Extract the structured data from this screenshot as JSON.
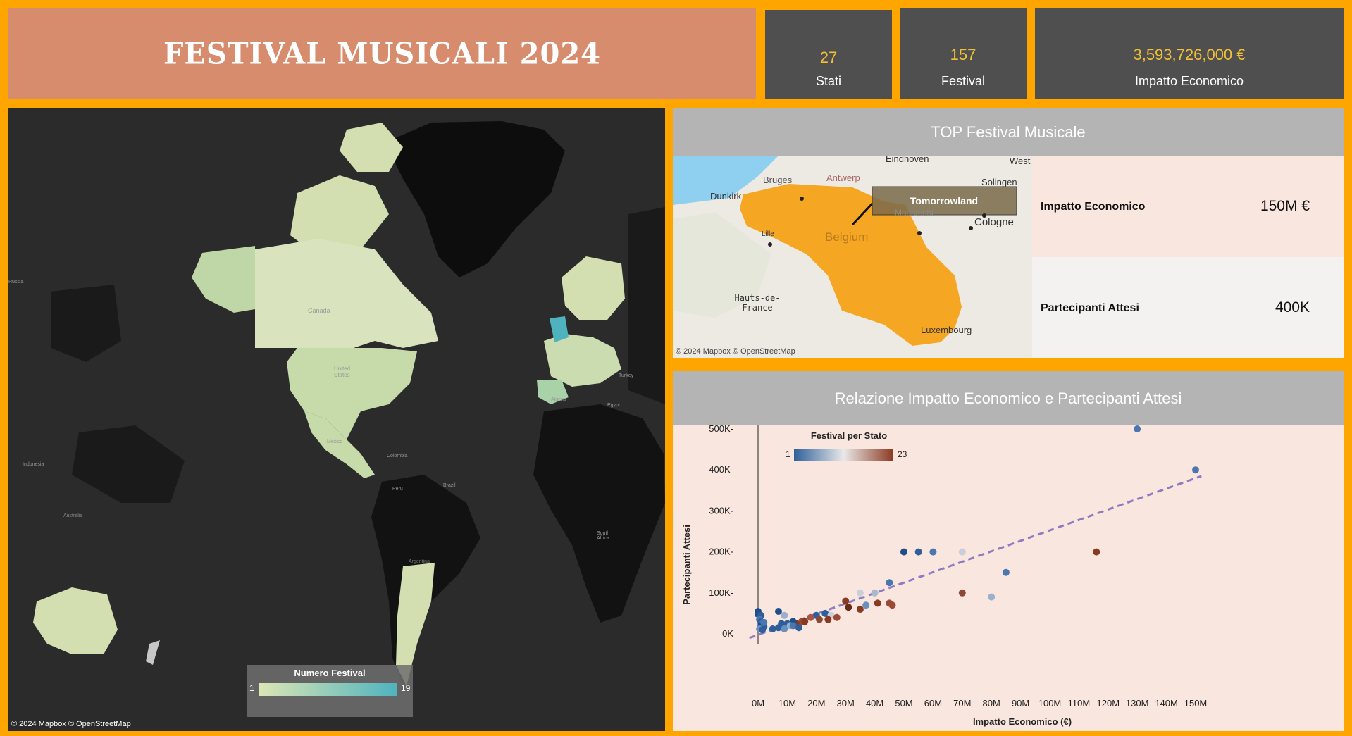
{
  "header": {
    "title": "FESTIVAL MUSICALI 2024"
  },
  "kpis": {
    "stati": {
      "value": "27",
      "label": "Stati"
    },
    "festival": {
      "value": "157",
      "label": "Festival"
    },
    "impatto": {
      "value": "3,593,726,000 €",
      "label": "Impatto Economico"
    }
  },
  "map": {
    "credit": "© 2024 Mapbox  © OpenStreetMap",
    "legend": {
      "title": "Numero Festival",
      "min": "1",
      "max": "19",
      "color_low": "#DCE6B4",
      "color_high": "#4FB3BF"
    },
    "labels": [
      "Canada",
      "United States",
      "Mexico",
      "Colombia",
      "Peru",
      "Brazil",
      "Argentina",
      "Algeria",
      "Egypt",
      "Turkey",
      "South Africa",
      "Australia",
      "Indonesia",
      "Russia"
    ]
  },
  "top_festival": {
    "title": "TOP Festival Musicale",
    "festival_name": "Tomorrowland",
    "map_credit": "© 2024 Mapbox  © OpenStreetMap",
    "place_labels": [
      "Eindhoven",
      "Antwerp",
      "Bruges",
      "Dunkirk",
      "Belgium",
      "Solingen",
      "West",
      "Cologne",
      "Maastricht",
      "Hauts-de-France",
      "Luxembourg",
      "Lille"
    ],
    "impatto_label": "Impatto Economico",
    "impatto_value": "150M €",
    "partecipanti_label": "Partecipanti Attesi",
    "partecipanti_value": "400K",
    "accent_color": "#F5A623"
  },
  "scatter": {
    "title": "Relazione Impatto Economico e Partecipanti Attesi",
    "legend": {
      "title": "Festival per Stato",
      "min": "1",
      "max": "23",
      "color_low": "#2F5F9A",
      "color_mid": "#E9E9E9",
      "color_high": "#8B3A22"
    }
  },
  "chart_data": {
    "type": "scatter",
    "title": "Relazione Impatto Economico e Partecipanti Attesi",
    "xlabel": "Impatto Economico (€)",
    "ylabel": "Partecipanti Attesi",
    "xlim": [
      0,
      150
    ],
    "ylim": [
      0,
      500
    ],
    "x_unit": "M",
    "y_unit": "K",
    "x_ticks": [
      "0M",
      "10M",
      "20M",
      "30M",
      "40M",
      "50M",
      "60M",
      "70M",
      "80M",
      "90M",
      "100M",
      "110M",
      "120M",
      "130M",
      "140M",
      "150M"
    ],
    "y_ticks": [
      "0K",
      "100K-",
      "200K-",
      "300K-",
      "400K-",
      "500K-"
    ],
    "trendline": {
      "x": [
        -3,
        152
      ],
      "y": [
        -10,
        385
      ],
      "style": "dashed",
      "color": "#8E7CC3"
    },
    "points": [
      {
        "x": 130,
        "y": 500,
        "c": "#4A77B0"
      },
      {
        "x": 150,
        "y": 400,
        "c": "#4A77B0"
      },
      {
        "x": 50,
        "y": 200,
        "c": "#1F4E8C"
      },
      {
        "x": 55,
        "y": 200,
        "c": "#2F5F9A"
      },
      {
        "x": 60,
        "y": 200,
        "c": "#4A77B0"
      },
      {
        "x": 70,
        "y": 200,
        "c": "#C9CFD8"
      },
      {
        "x": 116,
        "y": 200,
        "c": "#8B3A22"
      },
      {
        "x": 85,
        "y": 150,
        "c": "#4A77B0"
      },
      {
        "x": 45,
        "y": 125,
        "c": "#4A77B0"
      },
      {
        "x": 70,
        "y": 100,
        "c": "#8B4A33"
      },
      {
        "x": 80,
        "y": 90,
        "c": "#9AB0CC"
      },
      {
        "x": 35,
        "y": 100,
        "c": "#C9CFD8"
      },
      {
        "x": 40,
        "y": 100,
        "c": "#A9B8CC"
      },
      {
        "x": 30,
        "y": 80,
        "c": "#8B3A22"
      },
      {
        "x": 41,
        "y": 75,
        "c": "#8B3A22"
      },
      {
        "x": 45,
        "y": 75,
        "c": "#9A4A36"
      },
      {
        "x": 46,
        "y": 70,
        "c": "#9A4A36"
      },
      {
        "x": 37,
        "y": 70,
        "c": "#6A8FBF"
      },
      {
        "x": 31,
        "y": 65,
        "c": "#6A2A1A"
      },
      {
        "x": 35,
        "y": 60,
        "c": "#8B3A22"
      },
      {
        "x": 23,
        "y": 50,
        "c": "#2F5F9A"
      },
      {
        "x": 25,
        "y": 45,
        "c": "#C9CFD8"
      },
      {
        "x": 27,
        "y": 40,
        "c": "#9A4A36"
      },
      {
        "x": 20,
        "y": 45,
        "c": "#2F5F9A"
      },
      {
        "x": 18,
        "y": 40,
        "c": "#A9564A"
      },
      {
        "x": 21,
        "y": 35,
        "c": "#8B4A33"
      },
      {
        "x": 24,
        "y": 35,
        "c": "#8B3A22"
      },
      {
        "x": 15,
        "y": 30,
        "c": "#9A4A36"
      },
      {
        "x": 16,
        "y": 30,
        "c": "#8B3A22"
      },
      {
        "x": 13,
        "y": 25,
        "c": "#8B3A22"
      },
      {
        "x": 12,
        "y": 30,
        "c": "#1F4E8C"
      },
      {
        "x": 9,
        "y": 45,
        "c": "#9AB0CC"
      },
      {
        "x": 7,
        "y": 55,
        "c": "#1F4E8C"
      },
      {
        "x": 8,
        "y": 25,
        "c": "#2F5F9A"
      },
      {
        "x": 10,
        "y": 25,
        "c": "#2F5F9A"
      },
      {
        "x": 11,
        "y": 20,
        "c": "#9AB0CC"
      },
      {
        "x": 12,
        "y": 20,
        "c": "#4A77B0"
      },
      {
        "x": 7,
        "y": 15,
        "c": "#2F5F9A"
      },
      {
        "x": 5,
        "y": 12,
        "c": "#2F5F9A"
      },
      {
        "x": 9,
        "y": 12,
        "c": "#6A8FBF"
      },
      {
        "x": 14,
        "y": 15,
        "c": "#2F5F9A"
      },
      {
        "x": 0,
        "y": 55,
        "c": "#1F4E8C"
      },
      {
        "x": 0,
        "y": 48,
        "c": "#1F4E8C"
      },
      {
        "x": 1,
        "y": 45,
        "c": "#2F5F9A"
      },
      {
        "x": 0.5,
        "y": 35,
        "c": "#4A77B0"
      },
      {
        "x": 1,
        "y": 30,
        "c": "#2F5F9A"
      },
      {
        "x": 1.5,
        "y": 25,
        "c": "#4A77B0"
      },
      {
        "x": 1,
        "y": 20,
        "c": "#1F4E8C"
      },
      {
        "x": 2,
        "y": 18,
        "c": "#2F5F9A"
      },
      {
        "x": 0.5,
        "y": 12,
        "c": "#6A8FBF"
      },
      {
        "x": 1.5,
        "y": 10,
        "c": "#2F5F9A"
      },
      {
        "x": 2,
        "y": 28,
        "c": "#4A77B0"
      }
    ]
  }
}
